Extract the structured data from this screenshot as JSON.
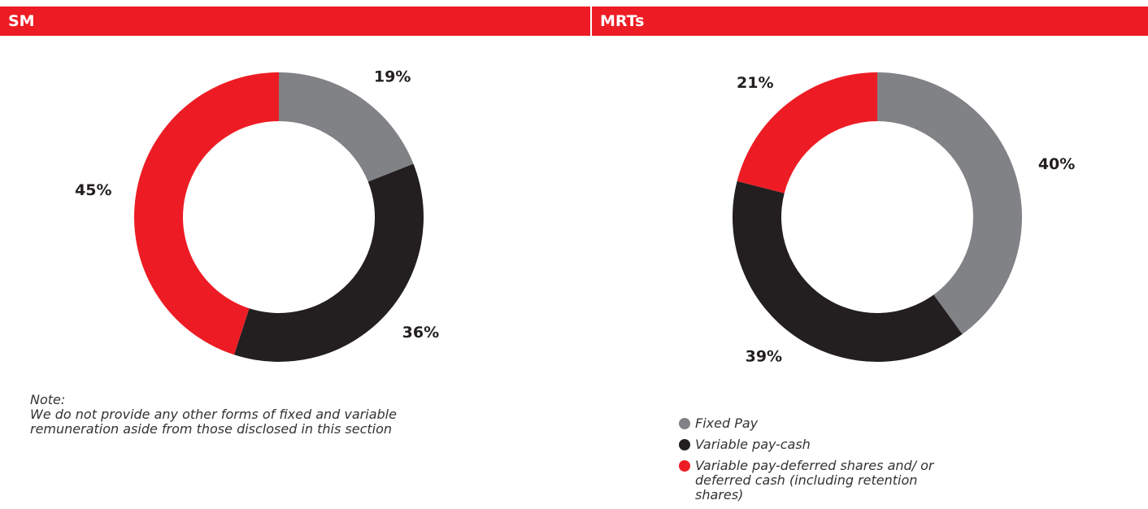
{
  "legend": {
    "items": [
      {
        "name": "Fixed Pay",
        "color": "#818285"
      },
      {
        "name": "Variable pay-cash",
        "color": "#231f20"
      },
      {
        "name": "Variable pay-deferred shares and/ or deferred cash (including retention shares)",
        "color": "#ed1c24"
      }
    ]
  },
  "note": {
    "label": "Note:",
    "text": "We do not provide any other forms of fixed and variable remuneration aside from those disclosed in this section"
  },
  "chart_data": [
    {
      "type": "donut",
      "title": "SM",
      "values": [
        19,
        36,
        45
      ],
      "value_labels": [
        "19%",
        "36%",
        "45%"
      ]
    },
    {
      "type": "donut",
      "title": "MRTs",
      "values": [
        40,
        39,
        21
      ],
      "value_labels": [
        "40%",
        "39%",
        "21%"
      ]
    }
  ]
}
